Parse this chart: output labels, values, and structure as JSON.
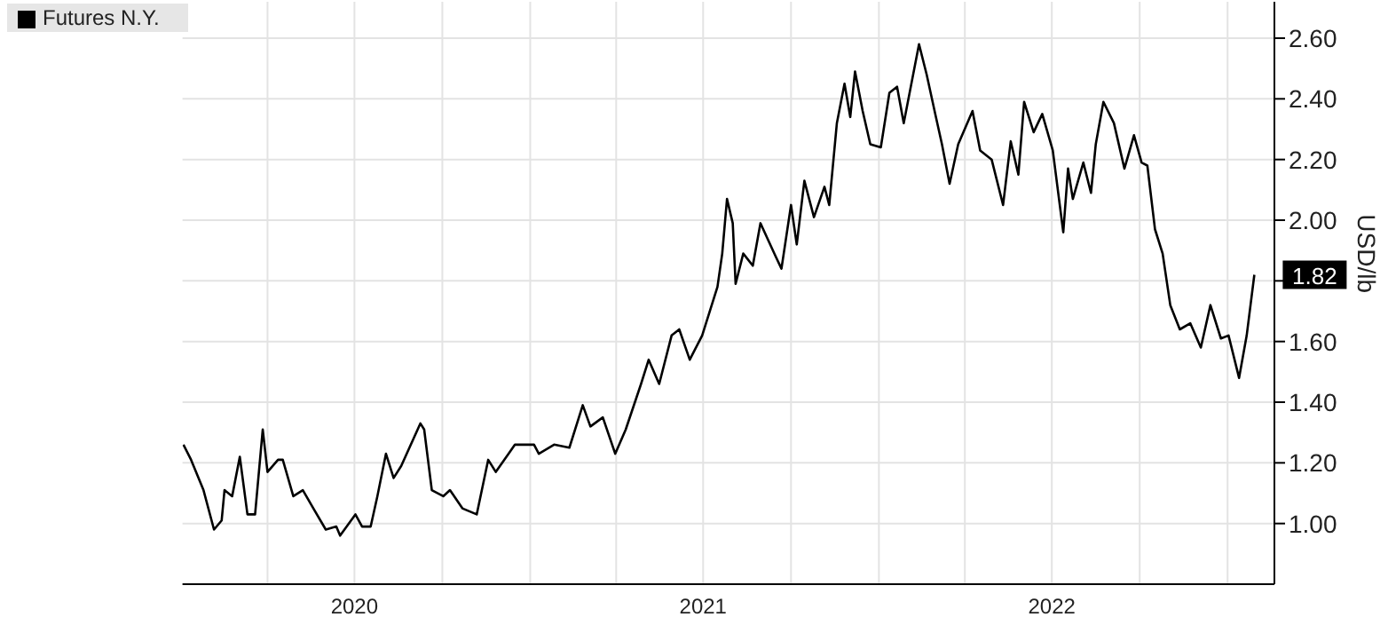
{
  "chart_data": {
    "type": "line",
    "ylabel": "USD/lb",
    "legend": "top left",
    "grid": true,
    "marker": "none",
    "line_style": "solid",
    "x": [
      "2020-01-04",
      "2020-01-12",
      "2020-01-25",
      "2020-02-05",
      "2020-02-13",
      "2020-02-16",
      "2020-02-24",
      "2020-03-03",
      "2020-03-11",
      "2020-03-19",
      "2020-03-27",
      "2020-04-01",
      "2020-04-12",
      "2020-04-17",
      "2020-04-28",
      "2020-05-08",
      "2020-05-19",
      "2020-06-01",
      "2020-06-12",
      "2020-06-16",
      "2020-07-02",
      "2020-07-09",
      "2020-07-18",
      "2020-07-25",
      "2020-08-03",
      "2020-08-11",
      "2020-08-19",
      "2020-09-08",
      "2020-09-12",
      "2020-09-20",
      "2020-10-02",
      "2020-10-09",
      "2020-10-22",
      "2020-11-06",
      "2020-11-18",
      "2020-11-26",
      "2020-12-16",
      "2021-01-05",
      "2021-01-10",
      "2021-01-26",
      "2021-02-11",
      "2021-02-25",
      "2021-03-05",
      "2021-03-18",
      "2021-03-31",
      "2021-04-11",
      "2021-04-27",
      "2021-05-05",
      "2021-05-16",
      "2021-05-29",
      "2021-06-06",
      "2021-06-17",
      "2021-06-30",
      "2021-07-16",
      "2021-07-21",
      "2021-07-26",
      "2021-08-01",
      "2021-08-04",
      "2021-08-12",
      "2021-08-22",
      "2021-08-30",
      "2021-09-15",
      "2021-09-21",
      "2021-10-01",
      "2021-10-07",
      "2021-10-15",
      "2021-10-25",
      "2021-11-05",
      "2021-11-10",
      "2021-11-18",
      "2021-11-26",
      "2021-12-02",
      "2021-12-07",
      "2021-12-15",
      "2021-12-23",
      "2022-01-03",
      "2022-01-12",
      "2022-01-20",
      "2022-01-27",
      "2022-02-12",
      "2022-02-20",
      "2022-03-01",
      "2022-03-08",
      "2022-03-16",
      "2022-03-25",
      "2022-04-09",
      "2022-04-17",
      "2022-04-29",
      "2022-05-11",
      "2022-05-19",
      "2022-05-27",
      "2022-06-02",
      "2022-06-12",
      "2022-06-21",
      "2022-07-02",
      "2022-07-13",
      "2022-07-18",
      "2022-07-23",
      "2022-08-03",
      "2022-08-11",
      "2022-08-16",
      "2022-08-24",
      "2022-09-04",
      "2022-09-15",
      "2022-09-25",
      "2022-10-03",
      "2022-10-09",
      "2022-10-17",
      "2022-10-25",
      "2022-11-02",
      "2022-11-12",
      "2022-11-23",
      "2022-12-04",
      "2022-12-14",
      "2022-12-25",
      "2023-01-02",
      "2023-01-13",
      "2023-01-21",
      "2023-01-29"
    ],
    "series": [
      {
        "name": "Futures N.Y.",
        "color": "#000000",
        "values": [
          1.26,
          1.21,
          1.11,
          0.98,
          1.01,
          1.11,
          1.09,
          1.22,
          1.03,
          1.03,
          1.31,
          1.17,
          1.21,
          1.21,
          1.09,
          1.11,
          1.05,
          0.98,
          0.99,
          0.96,
          1.03,
          0.99,
          0.99,
          1.09,
          1.23,
          1.15,
          1.19,
          1.33,
          1.31,
          1.11,
          1.09,
          1.11,
          1.05,
          1.03,
          1.21,
          1.17,
          1.26,
          1.26,
          1.23,
          1.26,
          1.25,
          1.39,
          1.32,
          1.35,
          1.23,
          1.31,
          1.46,
          1.54,
          1.46,
          1.62,
          1.64,
          1.54,
          1.62,
          1.78,
          1.89,
          2.07,
          1.99,
          1.79,
          1.89,
          1.85,
          1.99,
          1.88,
          1.84,
          2.05,
          1.92,
          2.13,
          2.01,
          2.11,
          2.05,
          2.32,
          2.45,
          2.34,
          2.49,
          2.36,
          2.25,
          2.24,
          2.42,
          2.44,
          2.32,
          2.58,
          2.48,
          2.35,
          2.25,
          2.12,
          2.25,
          2.36,
          2.23,
          2.2,
          2.05,
          2.26,
          2.15,
          2.39,
          2.29,
          2.35,
          2.23,
          1.96,
          2.17,
          2.07,
          2.19,
          2.09,
          2.25,
          2.39,
          2.32,
          2.17,
          2.28,
          2.19,
          2.18,
          1.97,
          1.89,
          1.72,
          1.64,
          1.66,
          1.58,
          1.72,
          1.61,
          1.62,
          1.48,
          1.62,
          1.82
        ]
      }
    ],
    "xlim": [
      "2020-01-03",
      "2023-02-19"
    ],
    "xticks": [
      {
        "value": "2020-04-01",
        "label": null
      },
      {
        "value": "2020-07-01",
        "label": "2020"
      },
      {
        "value": "2020-10-01",
        "label": null
      },
      {
        "value": "2021-01-01",
        "label": null
      },
      {
        "value": "2021-04-01",
        "label": null
      },
      {
        "value": "2021-07-01",
        "label": "2021"
      },
      {
        "value": "2021-10-01",
        "label": null
      },
      {
        "value": "2022-01-01",
        "label": null
      },
      {
        "value": "2022-04-01",
        "label": null
      },
      {
        "value": "2022-07-01",
        "label": "2022"
      },
      {
        "value": "2022-10-01",
        "label": null
      },
      {
        "value": "2023-01-01",
        "label": null
      }
    ],
    "ylim": [
      0.8,
      2.72
    ],
    "yticks": [
      {
        "value": 1.0,
        "label": "1.00"
      },
      {
        "value": 1.2,
        "label": "1.20"
      },
      {
        "value": 1.4,
        "label": "1.40"
      },
      {
        "value": 1.6,
        "label": "1.60"
      },
      {
        "value": 1.8,
        "label": null
      },
      {
        "value": 2.0,
        "label": "2.00"
      },
      {
        "value": 2.2,
        "label": "2.20"
      },
      {
        "value": 2.4,
        "label": "2.40"
      },
      {
        "value": 2.6,
        "label": "2.60"
      }
    ],
    "annotations": [
      {
        "text": "1.82",
        "x": "2023-01-29",
        "y": 1.82
      }
    ]
  }
}
